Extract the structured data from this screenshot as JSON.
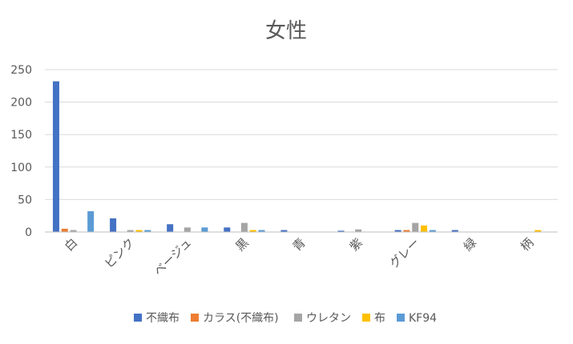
{
  "chart_data": {
    "type": "bar",
    "title": "女性",
    "xlabel": "",
    "ylabel": "",
    "ylim": [
      0,
      250
    ],
    "yticks": [
      0,
      50,
      100,
      150,
      200,
      250
    ],
    "grid": true,
    "legend_position": "bottom",
    "categories": [
      "白",
      "ピンク",
      "ベージュ",
      "黒",
      "青",
      "紫",
      "グレー",
      "緑",
      "柄"
    ],
    "series": [
      {
        "name": "不織布",
        "color": "#4472c4",
        "values": [
          232,
          21,
          12,
          7,
          3,
          2,
          3,
          3,
          0
        ]
      },
      {
        "name": "カラス(不織布)",
        "color": "#ed7d31",
        "values": [
          5,
          0,
          0,
          0,
          0,
          0,
          3,
          0,
          0
        ]
      },
      {
        "name": "ウレタン",
        "color": "#a5a5a5",
        "values": [
          3,
          3,
          7,
          14,
          0,
          4,
          14,
          0,
          0
        ]
      },
      {
        "name": "布",
        "color": "#ffc000",
        "values": [
          0,
          3,
          0,
          3,
          0,
          0,
          10,
          0,
          3
        ]
      },
      {
        "name": "KF94",
        "color": "#5b9bd5",
        "values": [
          32,
          3,
          7,
          3,
          0,
          0,
          3,
          0,
          0
        ]
      }
    ]
  }
}
